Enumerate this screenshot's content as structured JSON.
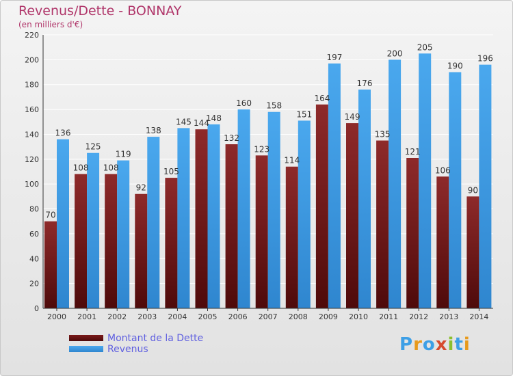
{
  "header": {
    "title": "Revenus/Dette - BONNAY",
    "subtitle": "(en milliers d'€)"
  },
  "chart_data": {
    "type": "bar",
    "categories": [
      "2000",
      "2001",
      "2002",
      "2003",
      "2004",
      "2005",
      "2006",
      "2007",
      "2008",
      "2009",
      "2010",
      "2011",
      "2012",
      "2013",
      "2014"
    ],
    "series": [
      {
        "name": "Montant de la Dette",
        "values": [
          70,
          108,
          108,
          92,
          105,
          144,
          132,
          123,
          114,
          164,
          149,
          135,
          121,
          106,
          90
        ],
        "color": "#7a1a1a"
      },
      {
        "name": "Revenus",
        "values": [
          136,
          125,
          119,
          138,
          145,
          148,
          160,
          158,
          151,
          197,
          176,
          200,
          205,
          190,
          196
        ],
        "color": "#3d9fe6"
      }
    ],
    "yticks": [
      0,
      20,
      40,
      60,
      80,
      100,
      120,
      140,
      160,
      180,
      200,
      220
    ],
    "ylim": [
      0,
      220
    ],
    "grid": true,
    "legend": "bottom-left"
  },
  "legend": {
    "items": [
      {
        "label": "Montant de la Dette",
        "color": "#7a1a1a"
      },
      {
        "label": "Revenus",
        "color": "#3d9fe6"
      }
    ]
  },
  "logo": {
    "text": "Proxiti",
    "letters": [
      "P",
      "r",
      "o",
      "x",
      "i",
      "t",
      "i"
    ],
    "colors": [
      "#3d9fe6",
      "#e89a1c",
      "#3d9fe6",
      "#d64a2e",
      "#8bbf2e",
      "#3d9fe6",
      "#e89a1c"
    ]
  }
}
